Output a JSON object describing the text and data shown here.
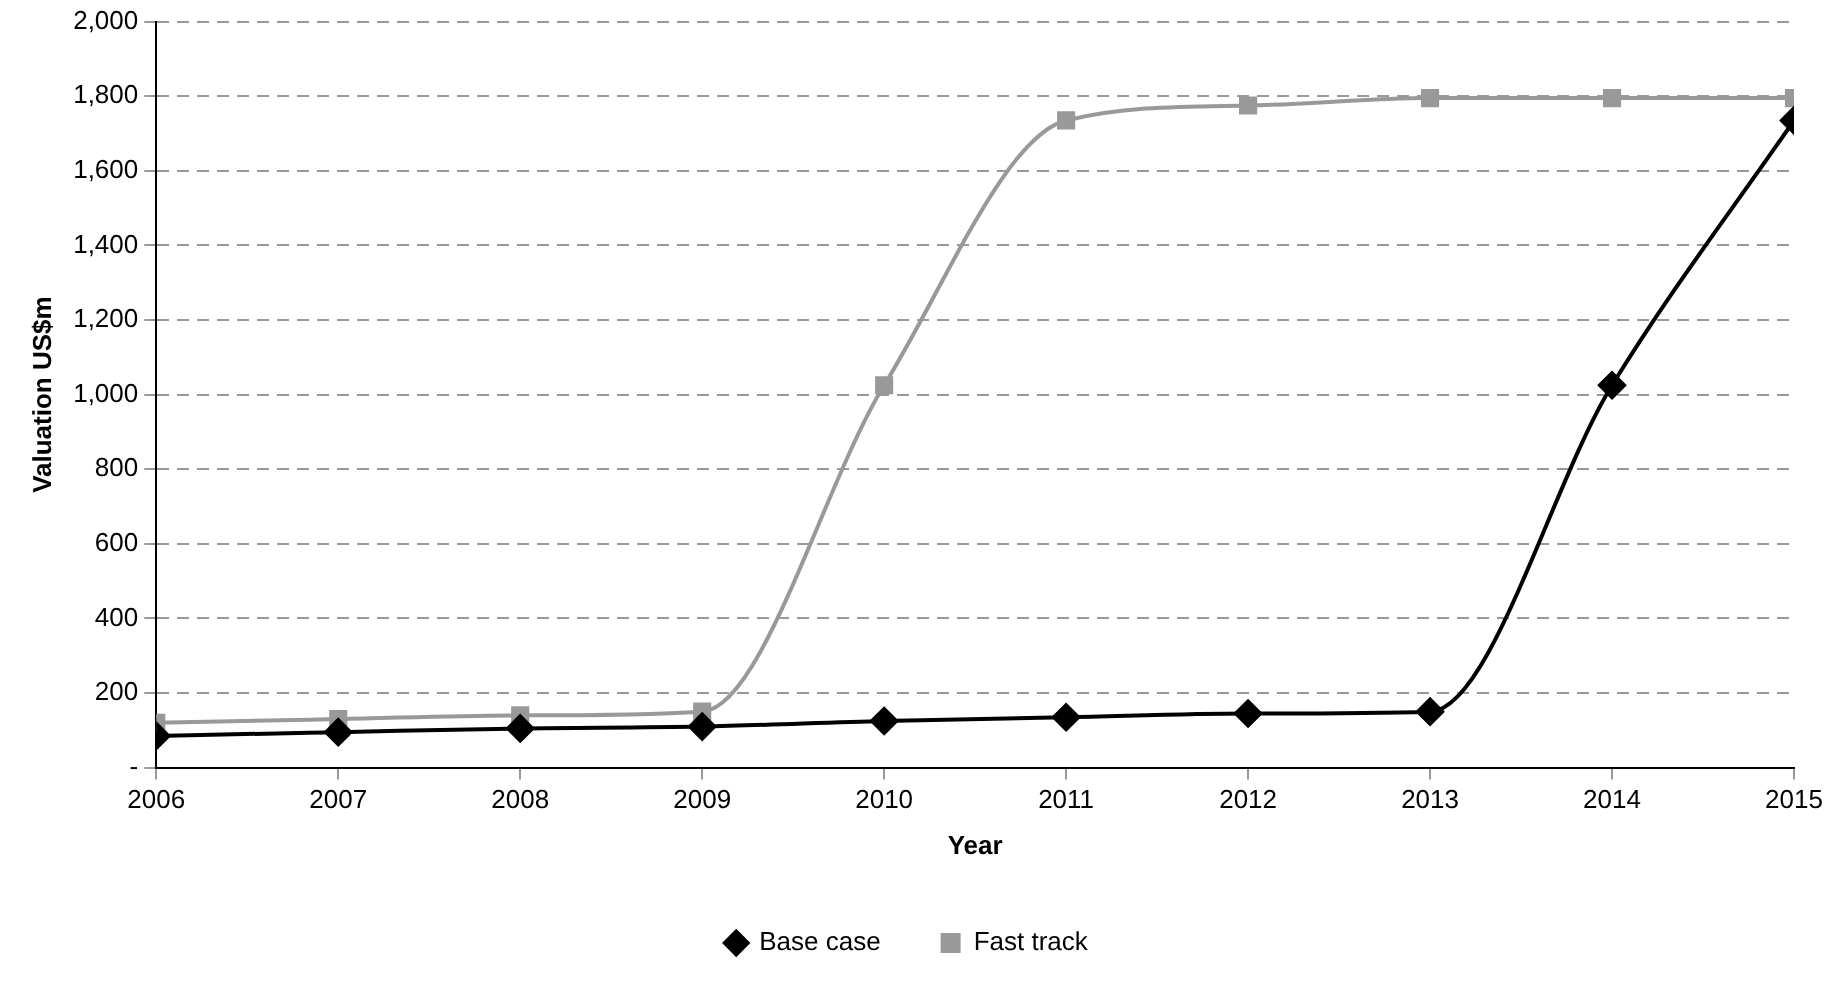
{
  "chart_data": {
    "type": "line",
    "xlabel": "Year",
    "ylabel": "Valuation US$m",
    "x": [
      2006,
      2007,
      2008,
      2009,
      2010,
      2011,
      2012,
      2013,
      2014,
      2015
    ],
    "series": [
      {
        "name": "Base case",
        "color": "#000000",
        "marker": "diamond",
        "values": [
          85,
          95,
          105,
          110,
          125,
          135,
          145,
          150,
          1025,
          1735
        ]
      },
      {
        "name": "Fast track",
        "color": "#999999",
        "marker": "square",
        "values": [
          120,
          130,
          140,
          150,
          1025,
          1735,
          1775,
          1795,
          1795,
          1795
        ]
      }
    ],
    "xlim": [
      2006,
      2015
    ],
    "xticks": [
      2006,
      2007,
      2008,
      2009,
      2010,
      2011,
      2012,
      2013,
      2014,
      2015
    ],
    "ylim": [
      0,
      2000
    ],
    "yticks": [
      {
        "value": 0,
        "label": "-"
      },
      200,
      400,
      600,
      800,
      {
        "value": 1000,
        "label": "1,000"
      },
      {
        "value": 1200,
        "label": "1,200"
      },
      {
        "value": 1400,
        "label": "1,400"
      },
      {
        "value": 1600,
        "label": "1,600"
      },
      {
        "value": 1800,
        "label": "1,800"
      },
      {
        "value": 2000,
        "label": "2,000"
      }
    ],
    "grid": "y",
    "legend": "bottom",
    "line_style": "solid"
  }
}
